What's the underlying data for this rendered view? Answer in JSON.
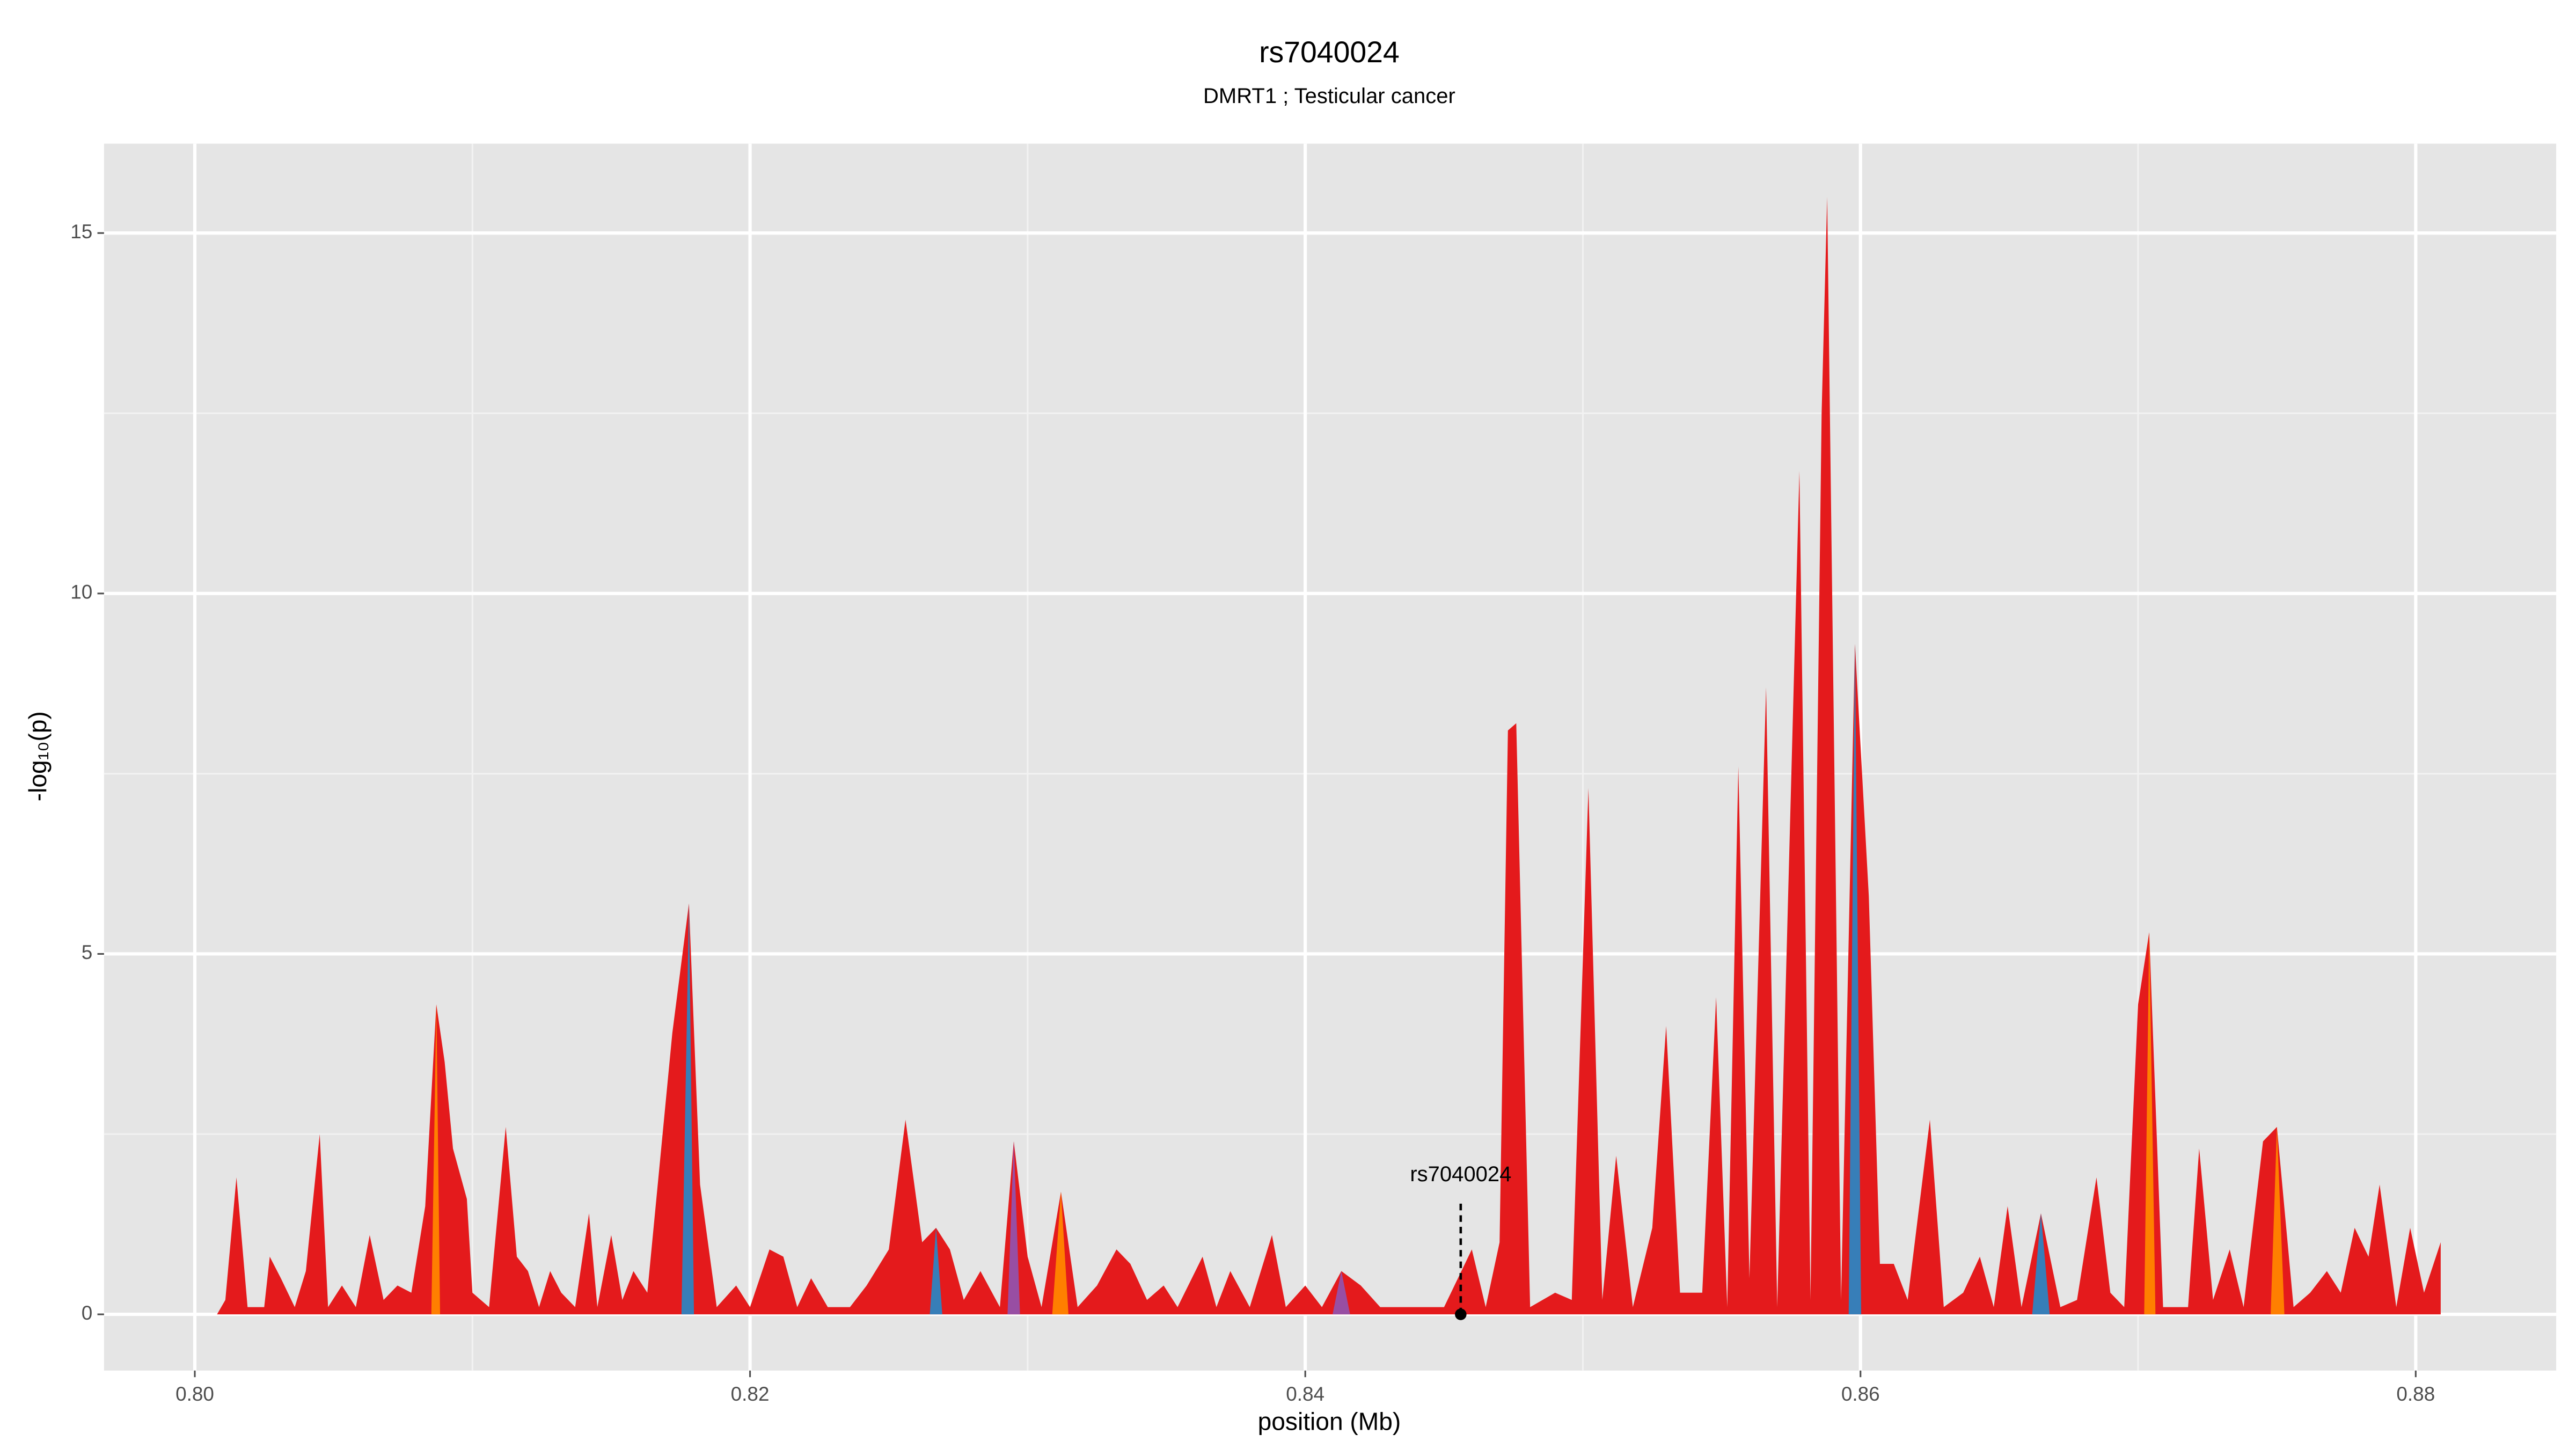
{
  "chart_data": {
    "type": "area",
    "title": "rs7040024",
    "subtitle": "DMRT1 ; Testicular cancer",
    "xlabel": "position (Mb)",
    "ylabel": "-log₁₀(p)",
    "xlim": [
      0.79673,
      0.88506
    ],
    "ylim": [
      -0.78,
      16.24
    ],
    "xticks": [
      {
        "value": 0.8,
        "label": "0.80"
      },
      {
        "value": 0.82,
        "label": "0.82"
      },
      {
        "value": 0.84,
        "label": "0.84"
      },
      {
        "value": 0.86,
        "label": "0.86"
      },
      {
        "value": 0.88,
        "label": "0.88"
      }
    ],
    "xminor": [
      0.81,
      0.83,
      0.85,
      0.87
    ],
    "yticks": [
      0,
      5,
      10,
      15
    ],
    "yminor": [
      2.5,
      7.5,
      12.5
    ],
    "grid": true,
    "x": [
      0.8008,
      0.8011,
      0.8015,
      0.8019,
      0.8025,
      0.8027,
      0.8031,
      0.8036,
      0.804,
      0.8045,
      0.8048,
      0.8053,
      0.8058,
      0.8063,
      0.8068,
      0.8073,
      0.8078,
      0.8083,
      0.8087,
      0.809,
      0.8093,
      0.8098,
      0.81,
      0.8106,
      0.8112,
      0.8116,
      0.812,
      0.8124,
      0.8128,
      0.8132,
      0.8137,
      0.8142,
      0.8145,
      0.815,
      0.8154,
      0.8158,
      0.8163,
      0.8172,
      0.8178,
      0.8182,
      0.8188,
      0.8195,
      0.82,
      0.8207,
      0.8212,
      0.8217,
      0.8222,
      0.8228,
      0.8236,
      0.8242,
      0.825,
      0.8256,
      0.8262,
      0.8267,
      0.8272,
      0.8277,
      0.8283,
      0.829,
      0.8295,
      0.83,
      0.8305,
      0.8312,
      0.8318,
      0.8325,
      0.8332,
      0.8337,
      0.8343,
      0.8349,
      0.8354,
      0.8363,
      0.8368,
      0.8373,
      0.838,
      0.8388,
      0.8393,
      0.84,
      0.8406,
      0.8413,
      0.842,
      0.8427,
      0.844,
      0.845,
      0.846,
      0.8465,
      0.847,
      0.8473,
      0.8476,
      0.8481,
      0.849,
      0.8496,
      0.8502,
      0.8507,
      0.8512,
      0.8518,
      0.8525,
      0.853,
      0.8535,
      0.8543,
      0.8548,
      0.8552,
      0.8556,
      0.856,
      0.8566,
      0.857,
      0.8578,
      0.8582,
      0.8586,
      0.8588,
      0.8593,
      0.8598,
      0.8603,
      0.8607,
      0.8612,
      0.8617,
      0.8625,
      0.863,
      0.8637,
      0.8643,
      0.8648,
      0.8653,
      0.8658,
      0.8665,
      0.8672,
      0.8678,
      0.8685,
      0.869,
      0.8695,
      0.87,
      0.8704,
      0.8709,
      0.8718,
      0.8722,
      0.8727,
      0.8733,
      0.8738,
      0.8745,
      0.875,
      0.8756,
      0.8762,
      0.8768,
      0.8773,
      0.8778,
      0.8783,
      0.8787,
      0.8793,
      0.8798,
      0.8803,
      0.8809
    ],
    "series": [
      {
        "color": "#e41a1c",
        "values": [
          0,
          0.2,
          1.9,
          0.1,
          0.1,
          0.8,
          0.5,
          0.1,
          0.6,
          2.5,
          0.1,
          0.4,
          0.1,
          1.1,
          0.2,
          0.4,
          0.3,
          1.5,
          4.3,
          3.5,
          2.3,
          1.6,
          0.3,
          0.1,
          2.6,
          0.8,
          0.6,
          0.1,
          0.6,
          0.3,
          0.1,
          1.4,
          0.1,
          1.1,
          0.2,
          0.6,
          0.3,
          3.9,
          5.7,
          1.8,
          0.1,
          0.4,
          0.1,
          0.9,
          0.8,
          0.1,
          0.5,
          0.1,
          0.1,
          0.4,
          0.9,
          2.7,
          1.0,
          1.2,
          0.9,
          0.2,
          0.6,
          0.1,
          2.4,
          0.8,
          0.1,
          1.7,
          0.1,
          0.4,
          0.9,
          0.7,
          0.2,
          0.4,
          0.1,
          0.8,
          0.1,
          0.6,
          0.1,
          1.1,
          0.1,
          0.4,
          0.1,
          0.6,
          0.4,
          0.1,
          0.1,
          0.1,
          0.9,
          0.1,
          1.0,
          8.1,
          8.2,
          0.1,
          0.3,
          0.2,
          7.3,
          0.2,
          2.2,
          0.1,
          1.2,
          4.0,
          0.3,
          0.3,
          4.4,
          0.1,
          7.6,
          0.5,
          8.7,
          0.1,
          11.7,
          0.2,
          12.5,
          15.5,
          0.2,
          9.3,
          5.8,
          0.7,
          0.7,
          0.2,
          2.7,
          0.1,
          0.3,
          0.8,
          0.1,
          1.5,
          0.1,
          1.4,
          0.1,
          0.2,
          1.9,
          0.3,
          0.1,
          4.3,
          5.3,
          0.1,
          0.1,
          2.3,
          0.2,
          0.9,
          0.1,
          2.4,
          2.6,
          0.1,
          0.3,
          0.6,
          0.3,
          1.2,
          0.8,
          1.8,
          0.1,
          1.2,
          0.3,
          1.0
        ],
        "colors": [
          "#e41a1c",
          "#e41a1c",
          "#e41a1c",
          "#e41a1c",
          "#e41a1c",
          "#e41a1c",
          "#e41a1c",
          "#e41a1c",
          "#e41a1c",
          "#e41a1c",
          "#e41a1c",
          "#e41a1c",
          "#e41a1c",
          "#e41a1c",
          "#e41a1c",
          "#e41a1c",
          "#e41a1c",
          "#e41a1c",
          "#ff7f00",
          "#e41a1c",
          "#e41a1c",
          "#e41a1c",
          "#e41a1c",
          "#e41a1c",
          "#e41a1c",
          "#e41a1c",
          "#e41a1c",
          "#e41a1c",
          "#e41a1c",
          "#e41a1c",
          "#e41a1c",
          "#e41a1c",
          "#e41a1c",
          "#e41a1c",
          "#e41a1c",
          "#e41a1c",
          "#e41a1c",
          "#e41a1c",
          "#377eb8",
          "#e41a1c",
          "#e41a1c",
          "#e41a1c",
          "#e41a1c",
          "#e41a1c",
          "#e41a1c",
          "#e41a1c",
          "#e41a1c",
          "#e41a1c",
          "#e41a1c",
          "#e41a1c",
          "#e41a1c",
          "#e41a1c",
          "#e41a1c",
          "#377eb8",
          "#e41a1c",
          "#e41a1c",
          "#e41a1c",
          "#e41a1c",
          "#984ea3",
          "#e41a1c",
          "#e41a1c",
          "#ff7f00",
          "#e41a1c",
          "#e41a1c",
          "#e41a1c",
          "#e41a1c",
          "#e41a1c",
          "#e41a1c",
          "#e41a1c",
          "#e41a1c",
          "#e41a1c",
          "#e41a1c",
          "#e41a1c",
          "#e41a1c",
          "#e41a1c",
          "#e41a1c",
          "#e41a1c",
          "#984ea3",
          "#e41a1c",
          "#e41a1c",
          "#e41a1c",
          "#e41a1c",
          "#e41a1c",
          "#e41a1c",
          "#e41a1c",
          "#e41a1c",
          "#e41a1c",
          "#e41a1c",
          "#e41a1c",
          "#e41a1c",
          "#e41a1c",
          "#e41a1c",
          "#e41a1c",
          "#e41a1c",
          "#e41a1c",
          "#e41a1c",
          "#e41a1c",
          "#e41a1c",
          "#e41a1c",
          "#e41a1c",
          "#e41a1c",
          "#e41a1c",
          "#e41a1c",
          "#e41a1c",
          "#e41a1c",
          "#e41a1c",
          "#e41a1c",
          "#e41a1c",
          "#e41a1c",
          "#377eb8",
          "#e41a1c",
          "#e41a1c",
          "#e41a1c",
          "#e41a1c",
          "#e41a1c",
          "#e41a1c",
          "#e41a1c",
          "#e41a1c",
          "#e41a1c",
          "#e41a1c",
          "#e41a1c",
          "#377eb8",
          "#e41a1c",
          "#e41a1c",
          "#e41a1c",
          "#e41a1c",
          "#e41a1c",
          "#e41a1c",
          "#ff7f00",
          "#e41a1c",
          "#e41a1c",
          "#e41a1c",
          "#e41a1c",
          "#e41a1c",
          "#e41a1c",
          "#e41a1c",
          "#ff7f00",
          "#e41a1c",
          "#e41a1c",
          "#e41a1c",
          "#e41a1c",
          "#e41a1c",
          "#e41a1c",
          "#e41a1c",
          "#e41a1c",
          "#e41a1c",
          "#e41a1c",
          "#e41a1c"
        ]
      }
    ],
    "annotation": {
      "text": "rs7040024",
      "x": 0.8456,
      "y": 0
    }
  }
}
